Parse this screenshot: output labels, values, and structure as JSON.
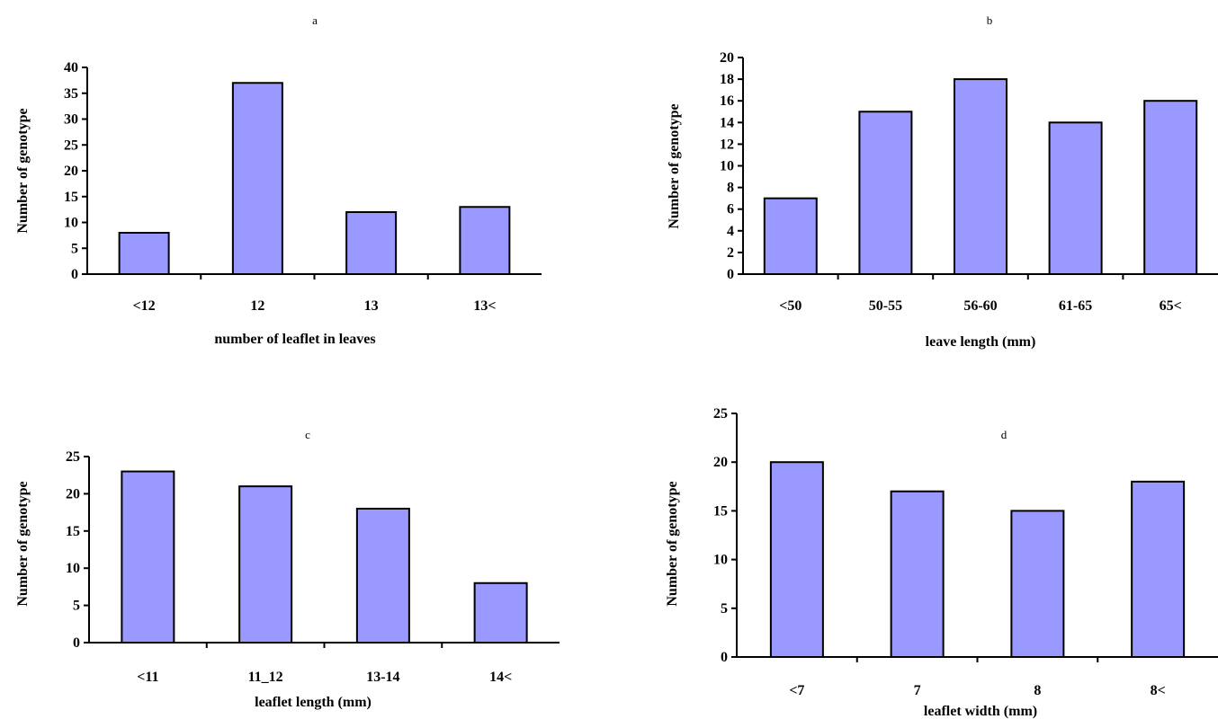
{
  "chart_data": [
    {
      "type": "bar",
      "panel": "a",
      "categories": [
        "<12",
        "12",
        "13",
        "13<"
      ],
      "values": [
        8,
        37,
        12,
        13
      ],
      "title": "",
      "xlabel": "number of  leaflet  in leaves",
      "ylabel": "Number of genotype",
      "ylim": [
        0,
        40
      ],
      "yticks": [
        0,
        5,
        10,
        15,
        20,
        25,
        30,
        35,
        40
      ],
      "grid": false,
      "bar_color": "#9999ff"
    },
    {
      "type": "bar",
      "panel": "b",
      "categories": [
        "<50",
        "50-55",
        "56-60",
        "61-65",
        "65<"
      ],
      "values": [
        7,
        15,
        18,
        14,
        16
      ],
      "title": "",
      "xlabel": "leave length (mm)",
      "ylabel": "Number of genotype",
      "ylim": [
        0,
        20
      ],
      "yticks": [
        0,
        2,
        4,
        6,
        8,
        10,
        12,
        14,
        16,
        18,
        20
      ],
      "grid": false,
      "bar_color": "#9999ff"
    },
    {
      "type": "bar",
      "panel": "c",
      "categories": [
        "<11",
        "11_12",
        "13-14",
        "14<"
      ],
      "values": [
        23,
        21,
        18,
        8
      ],
      "title": "",
      "xlabel": "leaflet length (mm)",
      "ylabel": "Number of genotype",
      "ylim": [
        0,
        25
      ],
      "yticks": [
        0,
        5,
        10,
        15,
        20,
        25
      ],
      "grid": false,
      "bar_color": "#9999ff"
    },
    {
      "type": "bar",
      "panel": "d",
      "categories": [
        "<7",
        "7",
        "8",
        "8<"
      ],
      "values": [
        20,
        17,
        15,
        18
      ],
      "title": "",
      "xlabel": "leaflet width (mm)",
      "ylabel": "Number of genotype",
      "ylim": [
        0,
        25
      ],
      "yticks": [
        0,
        5,
        10,
        15,
        20,
        25
      ],
      "grid": false,
      "bar_color": "#9999ff"
    }
  ]
}
